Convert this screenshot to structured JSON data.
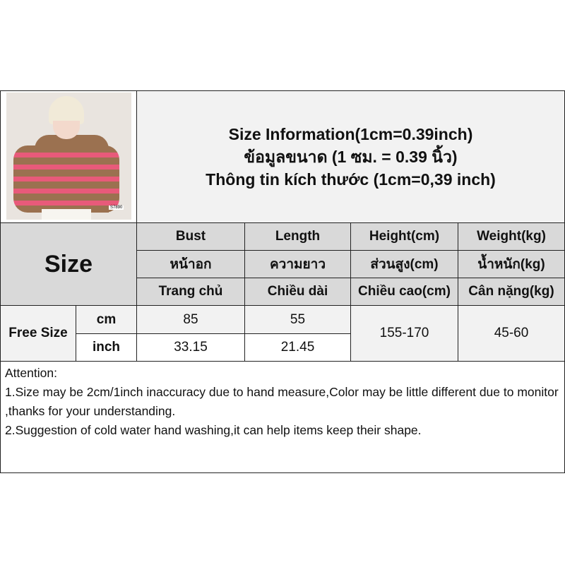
{
  "photo": {
    "tag": "S7890",
    "colors": {
      "sweater": "#9b7150",
      "stripe": "#e85a7a",
      "hat": "#f1ead8"
    }
  },
  "title": {
    "line1": "Size Information(1cm=0.39inch)",
    "line2": "ข้อมูลขนาด (1 ซม. = 0.39 นิ้ว)",
    "line3": "Thông tin kích thước (1cm=0,39 inch)"
  },
  "table": {
    "size_label": "Size",
    "columns": [
      {
        "en": "Bust",
        "th": "หน้าอก",
        "vi": "Trang chủ"
      },
      {
        "en": "Length",
        "th": "ความยาว",
        "vi": "Chiều dài"
      },
      {
        "en": "Height(cm)",
        "th": "ส่วนสูง(cm)",
        "vi": "Chiều cao(cm)"
      },
      {
        "en": "Weight(kg)",
        "th": "น้ำหนัก(kg)",
        "vi": "Cân nặng(kg)"
      }
    ],
    "row": {
      "size": "Free Size",
      "unit_cm": "cm",
      "unit_inch": "inch",
      "bust_cm": "85",
      "bust_inch": "33.15",
      "length_cm": "55",
      "length_inch": "21.45",
      "height": "155-170",
      "weight": "45-60"
    }
  },
  "attention": {
    "heading": "Attention:",
    "line1": "1.Size may be 2cm/1inch inaccuracy due to hand measure,Color may be little different due to monitor ,thanks for your understanding.",
    "line2": "2.Suggestion of cold water hand washing,it can help items keep their shape."
  }
}
